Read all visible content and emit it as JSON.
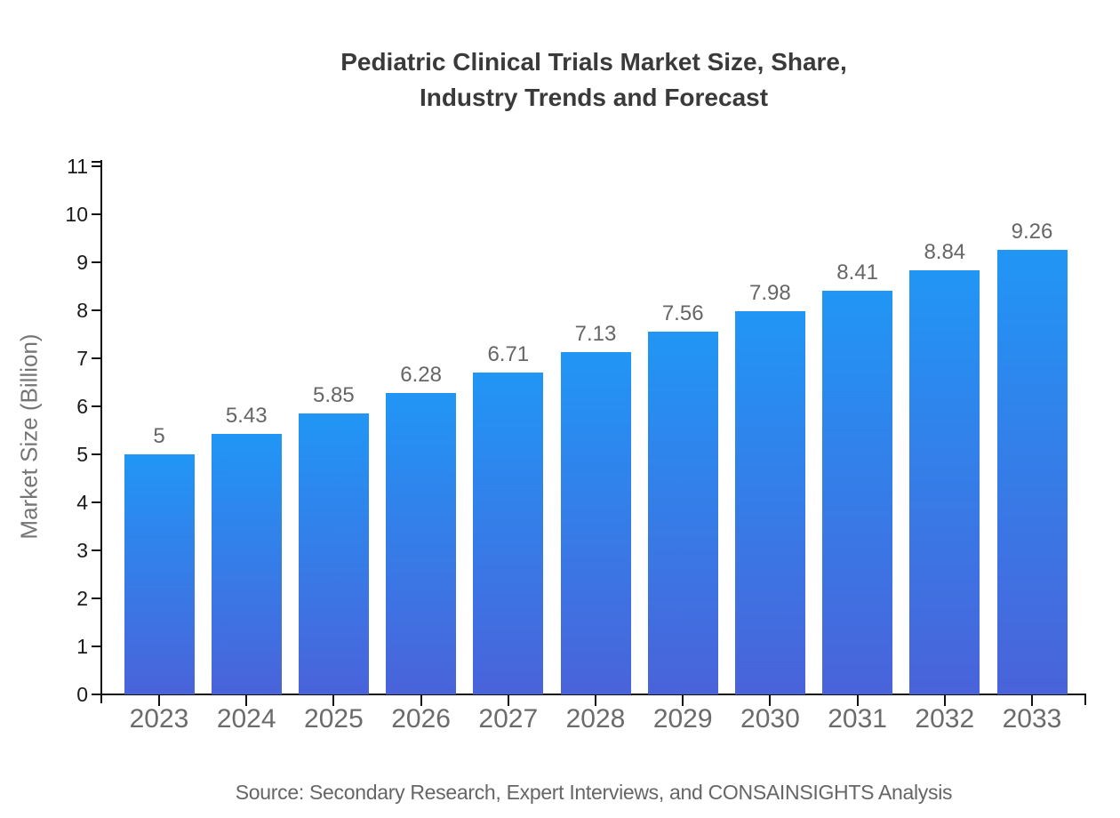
{
  "chart_data": {
    "type": "bar",
    "title": "Pediatric Clinical Trials Market Size, Share,\nIndustry Trends and Forecast",
    "ylabel": "Market Size (Billion)",
    "xlabel": "",
    "source": "Source: Secondary Research, Expert Interviews, and CONSAINSIGHTS Analysis",
    "categories": [
      "2023",
      "2024",
      "2025",
      "2026",
      "2027",
      "2028",
      "2029",
      "2030",
      "2031",
      "2032",
      "2033"
    ],
    "values": [
      5,
      5.43,
      5.85,
      6.28,
      6.71,
      7.13,
      7.56,
      7.98,
      8.41,
      8.84,
      9.26
    ],
    "value_labels": [
      "5",
      "5.43",
      "5.85",
      "6.28",
      "6.71",
      "7.13",
      "7.56",
      "7.98",
      "8.41",
      "8.84",
      "9.26"
    ],
    "ylim": [
      0,
      11
    ],
    "ytick_step": 1,
    "grid": false,
    "legend_position": "none",
    "colors": {
      "bar_top": "#2196F5",
      "bar_bottom": "#4A63DA",
      "axis": "#111111",
      "title_text": "#3A3A3A",
      "axis_label_text": "#757575",
      "ytick_text": "#1A1A1A",
      "xtick_text": "#6B6B6B",
      "value_text": "#666666",
      "source_text": "#666666",
      "background": "#FFFFFF"
    }
  }
}
